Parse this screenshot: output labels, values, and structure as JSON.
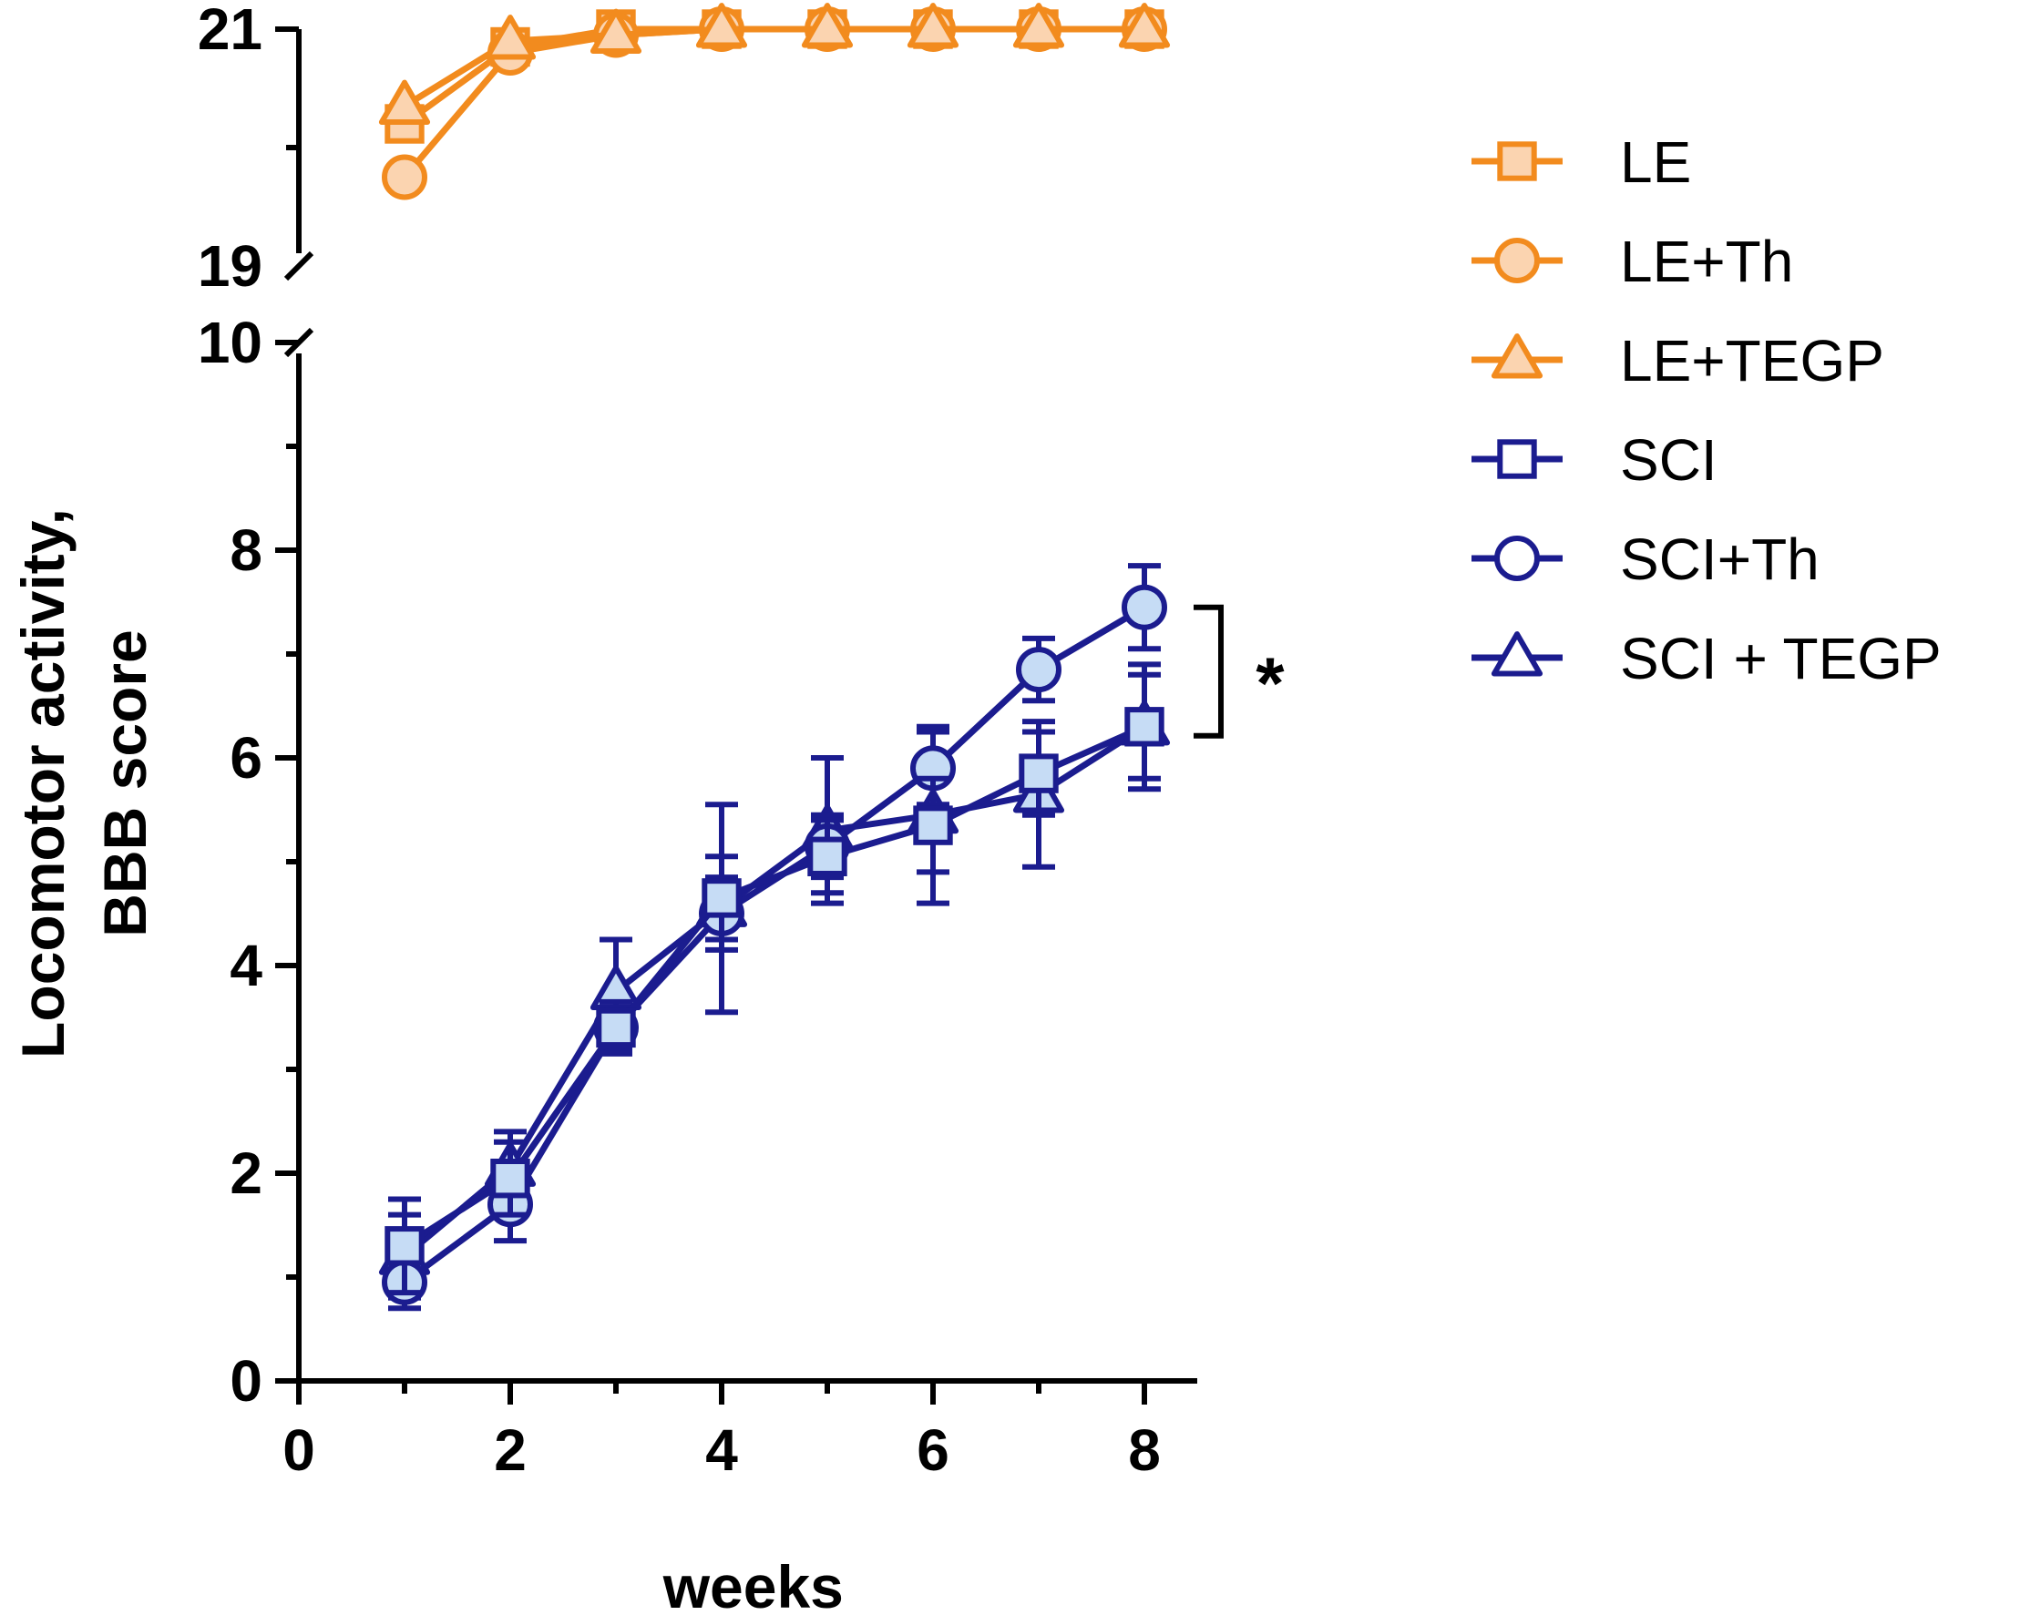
{
  "chart_data": {
    "type": "line",
    "title": "",
    "xlabel": "weeks",
    "ylabel": "Locomotor activity, BBB score",
    "x": [
      1,
      2,
      3,
      4,
      5,
      6,
      7,
      8
    ],
    "xlim": [
      0,
      8.5
    ],
    "x_ticks": [
      0,
      2,
      4,
      6,
      8
    ],
    "y_segments": [
      {
        "name": "lower",
        "range": [
          0,
          10
        ],
        "ticks": [
          0,
          2,
          4,
          6,
          8,
          10
        ]
      },
      {
        "name": "upper",
        "range": [
          19,
          21
        ],
        "ticks": [
          19,
          21
        ]
      }
    ],
    "axis_break": true,
    "series": [
      {
        "name": "LE",
        "group": "LE",
        "marker": "square",
        "values": [
          20.2,
          20.85,
          21,
          21,
          21,
          21,
          21,
          21
        ]
      },
      {
        "name": "LE+Th",
        "group": "LE",
        "marker": "circle",
        "values": [
          19.75,
          20.8,
          20.95,
          21,
          21,
          21,
          21,
          21
        ]
      },
      {
        "name": "LE+TEGP",
        "group": "LE",
        "marker": "triangle",
        "values": [
          20.35,
          20.9,
          20.95,
          21,
          21,
          21,
          21,
          21
        ]
      },
      {
        "name": "SCI",
        "group": "SCI",
        "marker": "square",
        "values": [
          1.3,
          1.95,
          3.4,
          4.65,
          5.05,
          5.35,
          5.85,
          6.3
        ],
        "err": [
          0.45,
          0.35,
          0.25,
          0.4,
          0.35,
          0.45,
          0.4,
          0.5
        ]
      },
      {
        "name": "SCI+Th",
        "group": "SCI",
        "marker": "circle",
        "values": [
          0.95,
          1.7,
          3.4,
          4.5,
          5.15,
          5.9,
          6.85,
          7.45
        ],
        "err": [
          0.25,
          0.35,
          0.2,
          0.35,
          0.3,
          0.35,
          0.3,
          0.4
        ]
      },
      {
        "name": "SCI + TEGP",
        "group": "SCI",
        "marker": "triangle",
        "values": [
          1.2,
          2.05,
          3.75,
          4.55,
          5.3,
          5.45,
          5.65,
          6.3
        ],
        "err": [
          0.4,
          0.35,
          0.5,
          1.0,
          0.7,
          0.85,
          0.7,
          0.6
        ]
      }
    ],
    "colors": {
      "LE": "#f28b1e",
      "LE_fill": "#fbd4b0",
      "SCI": "#1b1c8f",
      "SCI_fill": "#c6dcf5"
    },
    "legend": {
      "position": "right"
    },
    "annotations": [
      {
        "text": "*",
        "between": [
          "SCI+Th",
          "SCI"
        ],
        "at_x": 8
      }
    ]
  }
}
